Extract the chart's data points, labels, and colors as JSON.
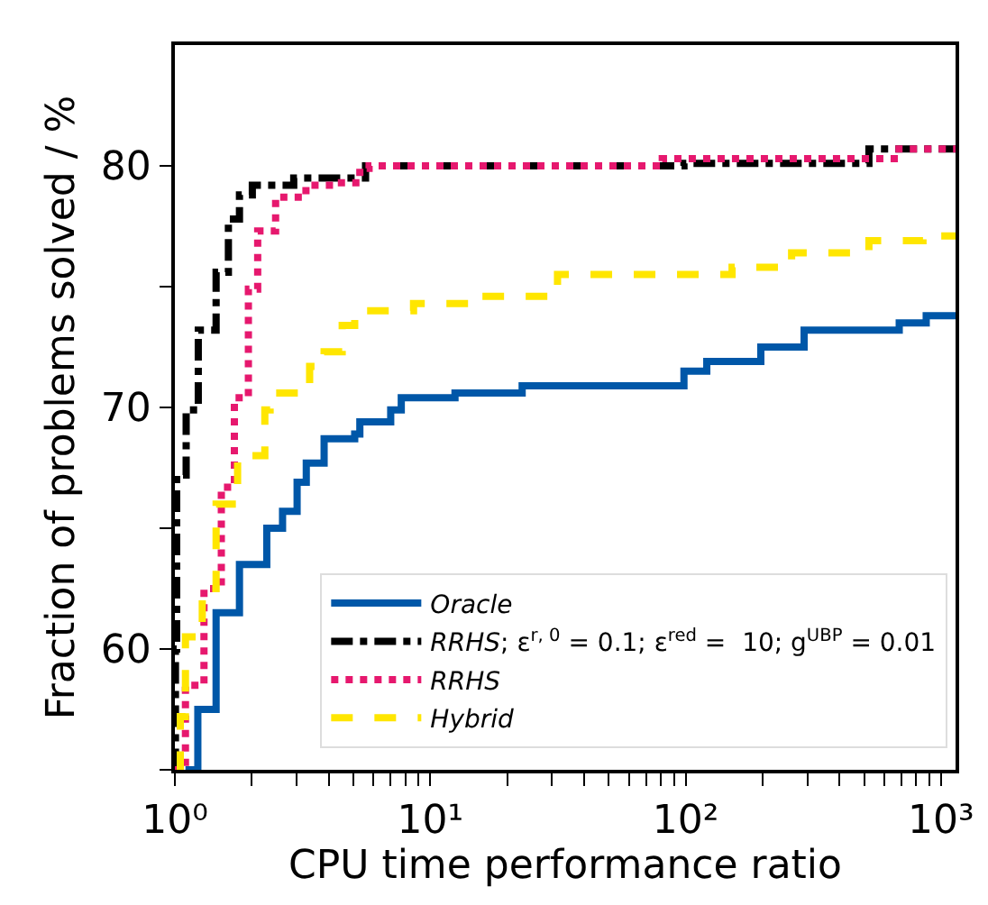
{
  "chart_data": {
    "type": "step",
    "xlabel": "CPU time performance ratio",
    "ylabel": "Fraction of problems solved / %",
    "log": "x",
    "grid": false,
    "legend": "bottom right",
    "marker": "none",
    "xlim": [
      1,
      1140
    ],
    "ylim": [
      55,
      85
    ],
    "xticks": [
      {
        "value": 1,
        "label": "10⁰"
      },
      {
        "value": 2,
        "label": null
      },
      {
        "value": 3,
        "label": null
      },
      {
        "value": 4,
        "label": null
      },
      {
        "value": 5,
        "label": null
      },
      {
        "value": 6,
        "label": null
      },
      {
        "value": 7,
        "label": null
      },
      {
        "value": 8,
        "label": null
      },
      {
        "value": 9,
        "label": null
      },
      {
        "value": 10,
        "label": "10¹"
      },
      {
        "value": 20,
        "label": null
      },
      {
        "value": 30,
        "label": null
      },
      {
        "value": 40,
        "label": null
      },
      {
        "value": 50,
        "label": null
      },
      {
        "value": 60,
        "label": null
      },
      {
        "value": 70,
        "label": null
      },
      {
        "value": 80,
        "label": null
      },
      {
        "value": 90,
        "label": null
      },
      {
        "value": 100,
        "label": "10²"
      },
      {
        "value": 200,
        "label": null
      },
      {
        "value": 300,
        "label": null
      },
      {
        "value": 400,
        "label": null
      },
      {
        "value": 500,
        "label": null
      },
      {
        "value": 600,
        "label": null
      },
      {
        "value": 700,
        "label": null
      },
      {
        "value": 800,
        "label": null
      },
      {
        "value": 900,
        "label": null
      },
      {
        "value": 1000,
        "label": "10³"
      }
    ],
    "yticks": [
      {
        "value": 55,
        "label": null
      },
      60,
      {
        "value": 65,
        "label": null
      },
      70,
      {
        "value": 75,
        "label": null
      },
      80
    ],
    "series": [
      {
        "name": "Oracle",
        "color": "#0057a8",
        "line_style": "solid",
        "x": [
          1.1,
          1.23,
          1.45,
          1.79,
          2.29,
          2.64,
          3.01,
          3.27,
          3.84,
          5.06,
          5.3,
          7.0,
          7.7,
          12.5,
          22.9,
          98.5,
          121,
          197,
          291,
          686,
          875,
          1140
        ],
        "values": [
          55,
          57.5,
          61.5,
          63.5,
          65,
          65.7,
          66.9,
          67.7,
          68.7,
          68.9,
          69.4,
          69.9,
          70.4,
          70.6,
          70.9,
          71.5,
          71.9,
          72.5,
          73.2,
          73.5,
          73.8,
          73.8
        ]
      },
      {
        "name": "RRHS; ε$^{r, 0}$ = 0.1; ε$^{red}$ =  10; g$^{UBP}$ = 0.01",
        "color": "#000000",
        "line_style": "dashdot",
        "x": [
          1.0,
          1.005,
          1.016,
          1.107,
          1.235,
          1.45,
          1.62,
          1.79,
          2.01,
          2.92,
          5.58,
          98.5,
          522,
          1140
        ],
        "values": [
          55,
          60,
          67.2,
          69.9,
          73.2,
          75.6,
          77.8,
          78.8,
          79.2,
          79.5,
          80.0,
          80.1,
          80.7,
          80.7
        ]
      },
      {
        "name": "RRHS",
        "color": "#e6186e",
        "line_style": "dotted",
        "x": [
          1.0,
          1.1,
          1.3,
          1.52,
          1.71,
          1.94,
          2.11,
          2.48,
          3.26,
          4.3,
          5.3,
          5.76,
          81,
          656,
          1140
        ],
        "values": [
          55,
          58.5,
          62.5,
          66.7,
          70.4,
          74.9,
          77.3,
          78.7,
          79.2,
          79.3,
          79.9,
          80.0,
          80.3,
          80.7,
          80.7
        ]
      },
      {
        "name": "Hybrid",
        "color": "#ffe600",
        "line_style": "dashed",
        "x": [
          1.02,
          1.05,
          1.1,
          1.28,
          1.45,
          1.76,
          2.25,
          2.36,
          3.37,
          3.84,
          4.52,
          5.06,
          8.6,
          14.8,
          31.5,
          152,
          260,
          522,
          850,
          1140
        ],
        "values": [
          55,
          57.2,
          60.5,
          62.5,
          66,
          68,
          69.9,
          70.6,
          71.7,
          72.3,
          73.4,
          74.0,
          74.3,
          74.6,
          75.5,
          75.8,
          76.4,
          76.9,
          77.1,
          77.1
        ]
      }
    ]
  }
}
